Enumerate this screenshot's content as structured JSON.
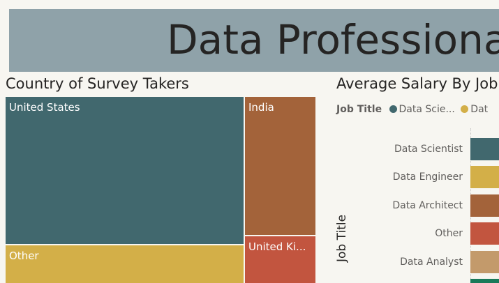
{
  "banner": {
    "title": "Data Professional Survey Breakdown"
  },
  "treemap": {
    "title": "Country of Survey Takers",
    "tiles": [
      {
        "label": "United States",
        "color": "#41686e"
      },
      {
        "label": "Other",
        "color": "#d3af48"
      },
      {
        "label": "India",
        "color": "#a3633a"
      },
      {
        "label": "United Ki...",
        "color": "#c2553f"
      }
    ]
  },
  "salary_chart": {
    "title": "Average Salary By Job Title",
    "legend": {
      "title": "Job Title",
      "items": [
        {
          "label": "Data Scie...",
          "color": "#41686e"
        },
        {
          "label": "Dat",
          "color": "#d3af48"
        }
      ]
    },
    "y_axis_title": "Job Title",
    "categories": [
      {
        "label": "Data Scientist",
        "color": "#41686e"
      },
      {
        "label": "Data Engineer",
        "color": "#d3af48"
      },
      {
        "label": "Data Architect",
        "color": "#a3633a"
      },
      {
        "label": "Other",
        "color": "#c2553f"
      },
      {
        "label": "Data Analyst",
        "color": "#c39a6b"
      }
    ],
    "next_bar_color": "#1a7a5a"
  }
}
